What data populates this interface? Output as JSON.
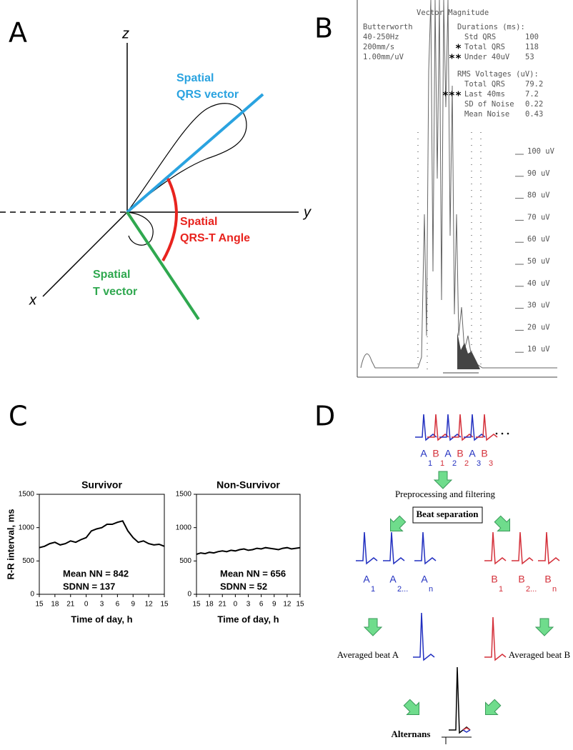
{
  "panel_a": {
    "letter": "A",
    "axes": {
      "x": "x",
      "y": "y",
      "z": "z"
    },
    "qrs_label": [
      "Spatial",
      "QRS vector"
    ],
    "angle_label": [
      "Spatial",
      "QRS-T Angle"
    ],
    "t_label": [
      "Spatial",
      "T vector"
    ]
  },
  "panel_b": {
    "letter": "B",
    "title": "Vector Magnitude",
    "filter": [
      "Butterworth",
      "40-250Hz",
      "200mm/s",
      "1.00mm/uV"
    ],
    "durations": {
      "heading": "Durations (ms):",
      "rows": [
        {
          "label": "Std QRS",
          "value": 100
        },
        {
          "marker": "*",
          "label": "Total QRS",
          "value": 118
        },
        {
          "marker": "**",
          "label": "Under 40uV",
          "value": 53
        }
      ]
    },
    "rms": {
      "heading": "RMS Voltages (uV):",
      "rows": [
        {
          "label": "Total QRS",
          "value": 79.2
        },
        {
          "marker": "***",
          "label": "Last 40ms",
          "value": 7.2
        },
        {
          "label": "SD of Noise",
          "value": 0.22
        },
        {
          "label": "Mean Noise",
          "value": 0.43
        }
      ]
    },
    "scale": [
      "100 uV",
      "90 uV",
      "80 uV",
      "70 uV",
      "60 uV",
      "50 uV",
      "40 uV",
      "30 uV",
      "20 uV",
      "10 uV"
    ]
  },
  "panel_c_letter": "C",
  "chart_data": [
    {
      "type": "line",
      "title": "Survivor",
      "ylabel": "R-R interval, ms",
      "xlabel": "Time of day, h",
      "x": [
        0,
        1,
        2,
        3,
        4,
        5,
        6,
        7,
        8,
        9,
        10,
        11,
        12,
        13,
        14,
        15,
        16,
        17,
        18,
        19,
        20,
        21,
        22,
        23,
        24
      ],
      "values": [
        700,
        720,
        760,
        780,
        740,
        760,
        800,
        780,
        820,
        850,
        950,
        980,
        1000,
        1050,
        1050,
        1080,
        1100,
        950,
        850,
        780,
        800,
        760,
        740,
        750,
        720
      ],
      "color": "#000000",
      "xlim": [
        0,
        24
      ],
      "ylim": [
        0,
        1500
      ],
      "yticks": [
        0,
        500,
        1000,
        1500
      ],
      "xticks": [
        {
          "value": 0,
          "label": "15"
        },
        {
          "value": 3,
          "label": "18"
        },
        {
          "value": 6,
          "label": "21"
        },
        {
          "value": 9,
          "label": "0"
        },
        {
          "value": 12,
          "label": "3"
        },
        {
          "value": 15,
          "label": "6"
        },
        {
          "value": 18,
          "label": "9"
        },
        {
          "value": 21,
          "label": "12"
        },
        {
          "value": 24,
          "label": "15"
        }
      ],
      "annotations": [
        "Mean NN = 842",
        "SDNN = 137"
      ]
    },
    {
      "type": "line",
      "title": "Non-Survivor",
      "xlabel": "Time of day, h",
      "x": [
        0,
        1,
        2,
        3,
        4,
        5,
        6,
        7,
        8,
        9,
        10,
        11,
        12,
        13,
        14,
        15,
        16,
        17,
        18,
        19,
        20,
        21,
        22,
        23,
        24
      ],
      "values": [
        600,
        620,
        610,
        630,
        620,
        640,
        650,
        640,
        660,
        650,
        670,
        680,
        660,
        670,
        690,
        680,
        700,
        690,
        680,
        670,
        690,
        700,
        680,
        690,
        700
      ],
      "color": "#000000",
      "xlim": [
        0,
        24
      ],
      "ylim": [
        0,
        1500
      ],
      "yticks": [
        0,
        500,
        1000,
        1500
      ],
      "xticks": [
        {
          "value": 0,
          "label": "15"
        },
        {
          "value": 3,
          "label": "18"
        },
        {
          "value": 6,
          "label": "21"
        },
        {
          "value": 9,
          "label": "0"
        },
        {
          "value": 12,
          "label": "3"
        },
        {
          "value": 15,
          "label": "6"
        },
        {
          "value": 18,
          "label": "9"
        },
        {
          "value": 21,
          "label": "12"
        },
        {
          "value": 24,
          "label": "15"
        }
      ],
      "annotations": [
        "Mean NN = 656",
        "SDNN = 52"
      ]
    }
  ],
  "panel_d": {
    "letter": "D",
    "strip": [
      {
        "letter": "A",
        "sub": "1"
      },
      {
        "letter": "B",
        "sub": "1"
      },
      {
        "letter": "A",
        "sub": "2"
      },
      {
        "letter": "B",
        "sub": "2"
      },
      {
        "letter": "A",
        "sub": "3"
      },
      {
        "letter": "B",
        "sub": "3"
      }
    ],
    "preprocessing": "Preprocessing and filtering",
    "separation": "Beat separation",
    "a_beats": [
      {
        "letter": "A",
        "sub": "1"
      },
      {
        "letter": "A",
        "sub": "2..."
      },
      {
        "letter": "A",
        "sub": "n"
      }
    ],
    "b_beats": [
      {
        "letter": "B",
        "sub": "1"
      },
      {
        "letter": "B",
        "sub": "2..."
      },
      {
        "letter": "B",
        "sub": "n"
      }
    ],
    "avg_a": "Averaged beat A",
    "avg_b": "Averaged beat B",
    "result": "Alternans"
  }
}
